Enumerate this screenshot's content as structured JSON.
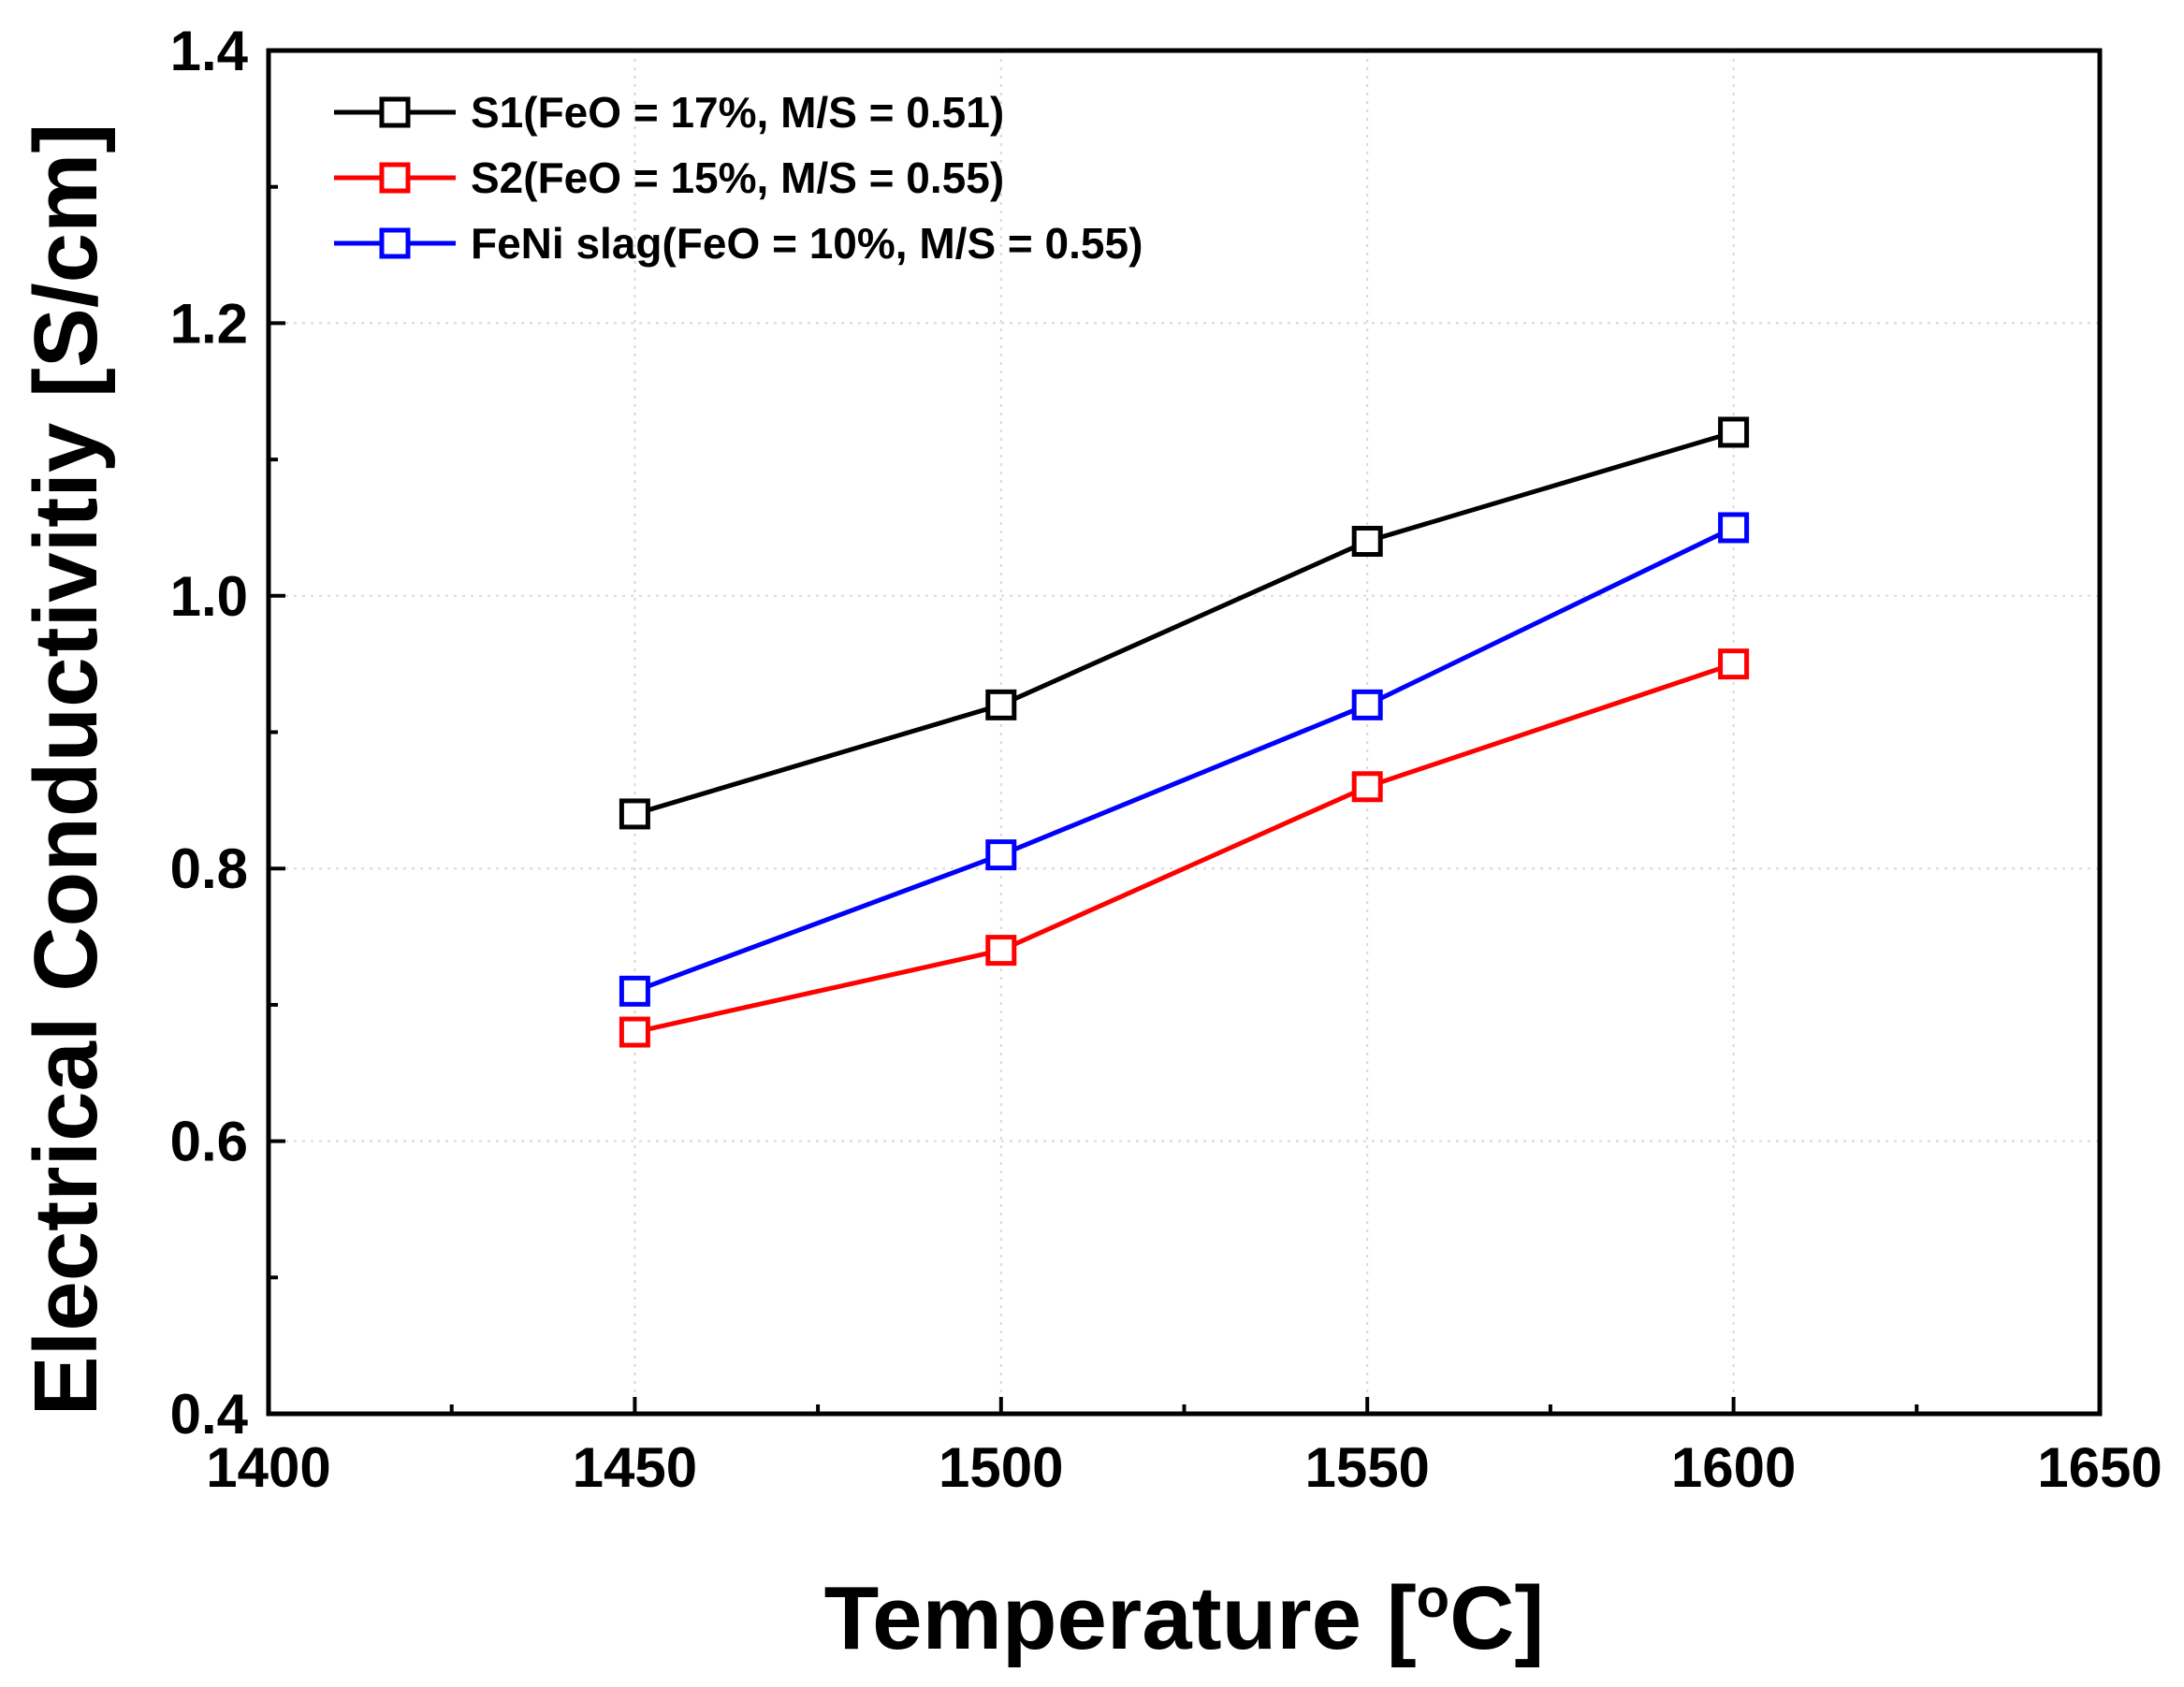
{
  "chart_data": {
    "type": "line",
    "title": "",
    "xlabel": "Temperature [",
    "xlabel_unit": "C]",
    "xlabel_degree": "o",
    "ylabel": "Electrical Conductivitiy [S/cm]",
    "xlim": [
      1400,
      1650
    ],
    "ylim": [
      0.4,
      1.4
    ],
    "x_major_ticks": [
      1400,
      1450,
      1500,
      1550,
      1600,
      1650
    ],
    "x_minor_ticks": [
      1425,
      1475,
      1525,
      1575,
      1625
    ],
    "y_major_ticks": [
      0.4,
      0.6,
      0.8,
      1.0,
      1.2,
      1.4
    ],
    "y_minor_ticks": [
      0.5,
      0.7,
      0.9,
      1.1,
      1.3
    ],
    "x_tick_labels": [
      "1400",
      "1450",
      "1500",
      "1550",
      "1600",
      "1650"
    ],
    "y_tick_labels": [
      "0.4",
      "0.6",
      "0.8",
      "1.0",
      "1.2",
      "1.4"
    ],
    "grid": true,
    "legend_position": "top-left",
    "x": [
      1450,
      1500,
      1550,
      1600
    ],
    "series": [
      {
        "name": "S1(FeO = 17%, M/S = 0.51)",
        "color": "#000000",
        "marker": "square-open",
        "values": [
          0.84,
          0.92,
          1.04,
          1.12
        ]
      },
      {
        "name": "S2(FeO = 15%, M/S = 0.55)",
        "color": "#ff0000",
        "marker": "square-open",
        "values": [
          0.68,
          0.74,
          0.86,
          0.95
        ]
      },
      {
        "name": "FeNi slag(FeO = 10%, M/S = 0.55)",
        "color": "#0000ff",
        "marker": "square-open",
        "values": [
          0.71,
          0.81,
          0.92,
          1.05
        ]
      }
    ]
  }
}
